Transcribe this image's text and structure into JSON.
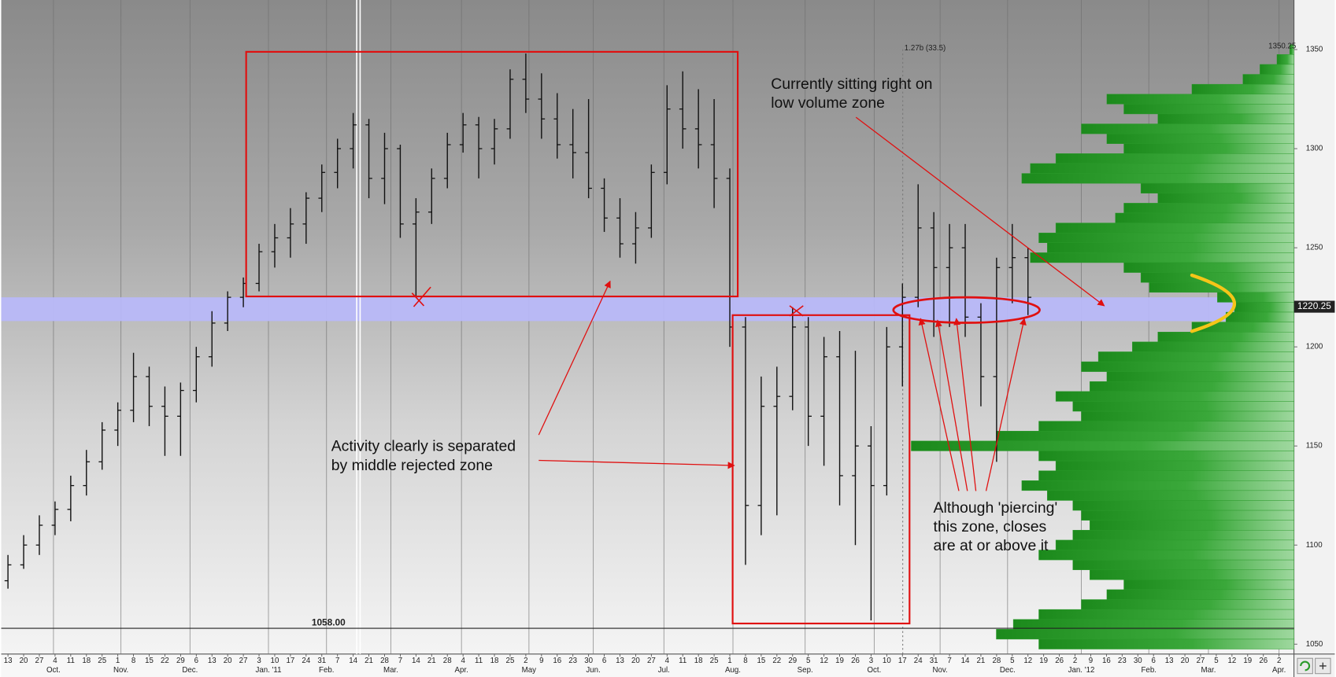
{
  "chart_data": {
    "type": "ohlc",
    "color": "#111111",
    "x": [
      0,
      1,
      2,
      3,
      4,
      5,
      6,
      7,
      8,
      9,
      10,
      11,
      12,
      13,
      14,
      15,
      16,
      17,
      18,
      19,
      20,
      21,
      22,
      23,
      24,
      25,
      26,
      27,
      28,
      29,
      30,
      31,
      32,
      33,
      34,
      35,
      36,
      37,
      38,
      39,
      40,
      41,
      42,
      43,
      44,
      45,
      46,
      47,
      48,
      49,
      50,
      51,
      52,
      53,
      54,
      55,
      56,
      57,
      58,
      59,
      60,
      61,
      62,
      63,
      64,
      65
    ],
    "open": [
      1082,
      1090,
      1100,
      1110,
      1118,
      1130,
      1142,
      1158,
      1168,
      1185,
      1170,
      1165,
      1178,
      1195,
      1212,
      1225,
      1232,
      1248,
      1255,
      1262,
      1275,
      1288,
      1300,
      1312,
      1285,
      1300,
      1262,
      1268,
      1285,
      1302,
      1312,
      1300,
      1310,
      1335,
      1325,
      1315,
      1302,
      1298,
      1280,
      1265,
      1252,
      1260,
      1288,
      1320,
      1310,
      1302,
      1285,
      1210,
      1120,
      1170,
      1175,
      1210,
      1165,
      1195,
      1135,
      1150,
      1130,
      1200,
      1225,
      1260,
      1240,
      1250,
      1215,
      1185,
      1240,
      1245
    ],
    "high": [
      1095,
      1105,
      1115,
      1122,
      1135,
      1148,
      1162,
      1172,
      1197,
      1190,
      1180,
      1182,
      1200,
      1218,
      1228,
      1235,
      1252,
      1262,
      1270,
      1278,
      1292,
      1305,
      1318,
      1315,
      1308,
      1302,
      1275,
      1290,
      1308,
      1318,
      1316,
      1315,
      1340,
      1348,
      1338,
      1328,
      1320,
      1325,
      1285,
      1275,
      1268,
      1292,
      1332,
      1339,
      1330,
      1325,
      1290,
      1215,
      1185,
      1190,
      1220,
      1215,
      1205,
      1208,
      1198,
      1160,
      1210,
      1232,
      1282,
      1268,
      1262,
      1262,
      1222,
      1245,
      1262,
      1250
    ],
    "low": [
      1078,
      1088,
      1095,
      1105,
      1112,
      1125,
      1138,
      1150,
      1162,
      1160,
      1145,
      1145,
      1172,
      1190,
      1208,
      1220,
      1228,
      1240,
      1245,
      1252,
      1268,
      1280,
      1290,
      1275,
      1272,
      1255,
      1225,
      1262,
      1280,
      1298,
      1285,
      1292,
      1305,
      1318,
      1305,
      1295,
      1285,
      1275,
      1258,
      1245,
      1242,
      1255,
      1282,
      1300,
      1290,
      1270,
      1200,
      1090,
      1105,
      1115,
      1168,
      1150,
      1140,
      1120,
      1100,
      1062,
      1125,
      1180,
      1220,
      1205,
      1210,
      1205,
      1170,
      1142,
      1222,
      1216
    ],
    "close": [
      1090,
      1100,
      1110,
      1118,
      1130,
      1142,
      1158,
      1168,
      1185,
      1170,
      1165,
      1178,
      1195,
      1212,
      1225,
      1232,
      1248,
      1255,
      1262,
      1275,
      1288,
      1300,
      1312,
      1285,
      1300,
      1262,
      1268,
      1285,
      1302,
      1312,
      1300,
      1310,
      1335,
      1325,
      1315,
      1302,
      1298,
      1280,
      1265,
      1252,
      1260,
      1288,
      1320,
      1310,
      1302,
      1285,
      1210,
      1120,
      1170,
      1175,
      1210,
      1165,
      1195,
      1135,
      1150,
      1130,
      1200,
      1225,
      1260,
      1240,
      1250,
      1215,
      1185,
      1240,
      1245,
      1225
    ],
    "xlim": [
      -0.43,
      81.95
    ],
    "ylim": [
      1045,
      1375
    ],
    "yticks": [
      1050,
      1100,
      1150,
      1200,
      1250,
      1300,
      1350
    ],
    "xticks": [
      {
        "value": 0,
        "label": "13"
      },
      {
        "value": 1,
        "label": "20"
      },
      {
        "value": 2,
        "label": "27"
      },
      {
        "value": 3,
        "label": "4"
      },
      {
        "value": 4,
        "label": "11"
      },
      {
        "value": 5,
        "label": "18"
      },
      {
        "value": 6,
        "label": "25"
      },
      {
        "value": 7,
        "label": "1"
      },
      {
        "value": 8,
        "label": "8"
      },
      {
        "value": 9,
        "label": "15"
      },
      {
        "value": 10,
        "label": "22"
      },
      {
        "value": 11,
        "label": "29"
      },
      {
        "value": 12,
        "label": "6"
      },
      {
        "value": 13,
        "label": "13"
      },
      {
        "value": 14,
        "label": "20"
      },
      {
        "value": 15,
        "label": "27"
      },
      {
        "value": 16,
        "label": "3"
      },
      {
        "value": 17,
        "label": "10"
      },
      {
        "value": 18,
        "label": "17"
      },
      {
        "value": 19,
        "label": "24"
      },
      {
        "value": 20,
        "label": "31"
      },
      {
        "value": 21,
        "label": "7"
      },
      {
        "value": 22,
        "label": "14"
      },
      {
        "value": 23,
        "label": "21"
      },
      {
        "value": 24,
        "label": "28"
      },
      {
        "value": 25,
        "label": "7"
      },
      {
        "value": 26,
        "label": "14"
      },
      {
        "value": 27,
        "label": "21"
      },
      {
        "value": 28,
        "label": "28"
      },
      {
        "value": 29,
        "label": "4"
      },
      {
        "value": 30,
        "label": "11"
      },
      {
        "value": 31,
        "label": "18"
      },
      {
        "value": 32,
        "label": "25"
      },
      {
        "value": 33,
        "label": "2"
      },
      {
        "value": 34,
        "label": "9"
      },
      {
        "value": 35,
        "label": "16"
      },
      {
        "value": 36,
        "label": "23"
      },
      {
        "value": 37,
        "label": "30"
      },
      {
        "value": 38,
        "label": "6"
      },
      {
        "value": 39,
        "label": "13"
      },
      {
        "value": 40,
        "label": "20"
      },
      {
        "value": 41,
        "label": "27"
      },
      {
        "value": 42,
        "label": "4"
      },
      {
        "value": 43,
        "label": "11"
      },
      {
        "value": 44,
        "label": "18"
      },
      {
        "value": 45,
        "label": "25"
      },
      {
        "value": 46,
        "label": "1"
      },
      {
        "value": 47,
        "label": "8"
      },
      {
        "value": 48,
        "label": "15"
      },
      {
        "value": 49,
        "label": "22"
      },
      {
        "value": 50,
        "label": "29"
      },
      {
        "value": 51,
        "label": "5"
      },
      {
        "value": 52,
        "label": "12"
      },
      {
        "value": 53,
        "label": "19"
      },
      {
        "value": 54,
        "label": "26"
      },
      {
        "value": 55,
        "label": "3"
      },
      {
        "value": 56,
        "label": "10"
      },
      {
        "value": 57,
        "label": "17"
      },
      {
        "value": 58,
        "label": "24"
      },
      {
        "value": 59,
        "label": "31"
      },
      {
        "value": 60,
        "label": "7"
      },
      {
        "value": 61,
        "label": "14"
      },
      {
        "value": 62,
        "label": "21"
      },
      {
        "value": 63,
        "label": "28"
      },
      {
        "value": 64,
        "label": "5"
      },
      {
        "value": 65,
        "label": "12"
      },
      {
        "value": 66,
        "label": "19"
      },
      {
        "value": 67,
        "label": "26"
      },
      {
        "value": 68,
        "label": "2"
      },
      {
        "value": 69,
        "label": "9"
      },
      {
        "value": 70,
        "label": "16"
      },
      {
        "value": 71,
        "label": "23"
      },
      {
        "value": 72,
        "label": "30"
      },
      {
        "value": 73,
        "label": "6"
      },
      {
        "value": 74,
        "label": "13"
      },
      {
        "value": 75,
        "label": "20"
      },
      {
        "value": 76,
        "label": "27"
      },
      {
        "value": 77,
        "label": "5"
      },
      {
        "value": 78,
        "label": "12"
      },
      {
        "value": 79,
        "label": "19"
      },
      {
        "value": 80,
        "label": "26"
      },
      {
        "value": 81,
        "label": "2"
      }
    ],
    "month_labels": [
      {
        "value": 2.9,
        "label": "Oct."
      },
      {
        "value": 7.2,
        "label": "Nov."
      },
      {
        "value": 11.6,
        "label": "Dec."
      },
      {
        "value": 16.6,
        "label": "Jan. '11"
      },
      {
        "value": 20.3,
        "label": "Feb."
      },
      {
        "value": 24.4,
        "label": "Mar."
      },
      {
        "value": 28.9,
        "label": "Apr."
      },
      {
        "value": 33.2,
        "label": "May"
      },
      {
        "value": 37.3,
        "label": "Jun."
      },
      {
        "value": 41.8,
        "label": "Jul."
      },
      {
        "value": 46.2,
        "label": "Aug."
      },
      {
        "value": 50.8,
        "label": "Sep."
      },
      {
        "value": 55.2,
        "label": "Oct."
      },
      {
        "value": 59.4,
        "label": "Nov."
      },
      {
        "value": 63.7,
        "label": "Dec."
      },
      {
        "value": 68.4,
        "label": "Jan. '12"
      },
      {
        "value": 72.7,
        "label": "Feb."
      },
      {
        "value": 76.5,
        "label": "Mar."
      },
      {
        "value": 81,
        "label": "Apr."
      }
    ],
    "last_price": 1220.25,
    "marker_line": {
      "value": 1058,
      "label": "1058.00"
    },
    "volume_note": "1.27b (33.5)",
    "profile": {
      "color": "#2a9a2a",
      "high": 1350.25,
      "levels": [
        1350,
        1345,
        1340,
        1335,
        1330,
        1325,
        1320,
        1315,
        1310,
        1305,
        1300,
        1295,
        1290,
        1285,
        1280,
        1275,
        1270,
        1265,
        1260,
        1255,
        1250,
        1245,
        1240,
        1235,
        1230,
        1225,
        1220,
        1215,
        1210,
        1205,
        1200,
        1195,
        1190,
        1185,
        1180,
        1175,
        1170,
        1165,
        1160,
        1155,
        1150,
        1145,
        1140,
        1135,
        1130,
        1125,
        1120,
        1115,
        1110,
        1105,
        1100,
        1095,
        1090,
        1085,
        1080,
        1075,
        1070,
        1065,
        1060,
        1055,
        1050
      ],
      "values": [
        5,
        20,
        40,
        60,
        120,
        220,
        200,
        160,
        250,
        220,
        200,
        280,
        310,
        320,
        180,
        160,
        200,
        210,
        280,
        300,
        290,
        310,
        200,
        180,
        170,
        90,
        70,
        80,
        120,
        160,
        190,
        230,
        250,
        220,
        240,
        280,
        260,
        250,
        300,
        350,
        450,
        300,
        280,
        300,
        320,
        290,
        260,
        250,
        240,
        260,
        280,
        300,
        260,
        240,
        200,
        220,
        250,
        300,
        330,
        350,
        300
      ]
    },
    "annotations": [
      {
        "lines": [
          "Currently sitting right on",
          "low volume zone"
        ]
      },
      {
        "lines": [
          "Activity clearly is separated",
          "by middle rejected zone"
        ]
      },
      {
        "lines": [
          "Although 'piercing'",
          "this zone, closes",
          "are at or above it"
        ]
      }
    ]
  }
}
